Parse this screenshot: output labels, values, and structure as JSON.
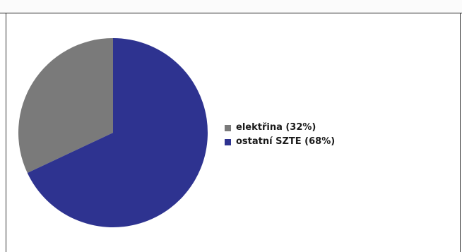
{
  "chart_data": {
    "type": "pie",
    "slices": [
      {
        "label": "elektřina (32%)",
        "value": 32,
        "color": "#7a7a7a"
      },
      {
        "label": "ostatní SZTE (68%)",
        "value": 68,
        "color": "#2e3390"
      }
    ],
    "legend_placement": "right"
  }
}
